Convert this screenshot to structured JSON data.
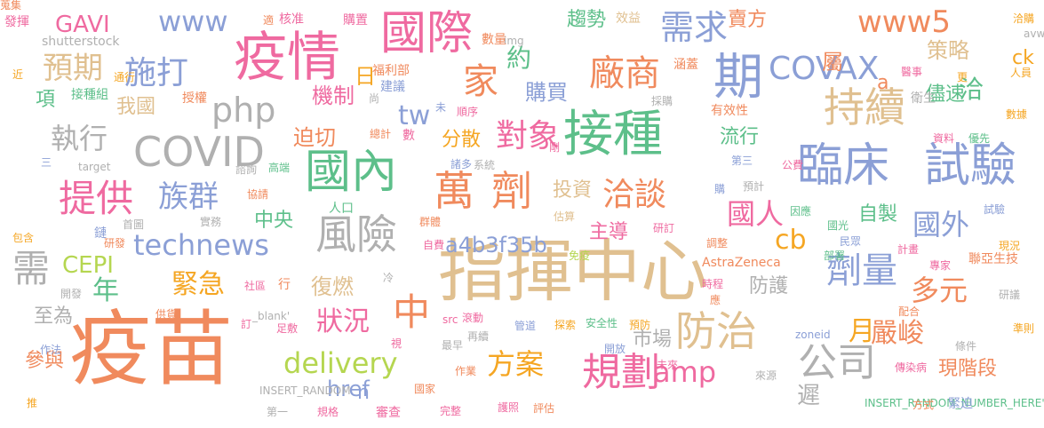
{
  "words": [
    {
      "t": "疫苗",
      "c": "#f08a5d"
    },
    {
      "t": "指揮中心",
      "c": "#e0c090"
    },
    {
      "t": "接種",
      "c": "#5dbf8a"
    },
    {
      "t": "疫情",
      "c": "#ef6aa0"
    },
    {
      "t": "國際",
      "c": "#ef6aa0"
    },
    {
      "t": "國內",
      "c": "#5dbf8a"
    },
    {
      "t": "萬",
      "c": "#f08a5d"
    },
    {
      "t": "劑",
      "c": "#f08a5d"
    },
    {
      "t": "臨床",
      "c": "#8b9fd6"
    },
    {
      "t": "試驗",
      "c": "#8b9fd6"
    },
    {
      "t": "COVID",
      "c": "#b0b0b0"
    },
    {
      "t": "風險",
      "c": "#b0b0b0"
    },
    {
      "t": "持續",
      "c": "#e0c090"
    },
    {
      "t": "期",
      "c": "#8b9fd6"
    },
    {
      "t": "廠商",
      "c": "#f08a5d"
    },
    {
      "t": "COVAX",
      "c": "#8b9fd6"
    },
    {
      "t": "需求",
      "c": "#8b9fd6"
    },
    {
      "t": "www5",
      "c": "#f08a5d"
    },
    {
      "t": "規劃",
      "c": "#ef6aa0"
    },
    {
      "t": "防治",
      "c": "#e0c090"
    },
    {
      "t": "公司",
      "c": "#b0b0b0"
    },
    {
      "t": "劑量",
      "c": "#8b9fd6"
    },
    {
      "t": "technews",
      "c": "#8b9fd6"
    },
    {
      "t": "delivery",
      "c": "#b5d650"
    },
    {
      "t": "提供",
      "c": "#ef6aa0"
    },
    {
      "t": "家",
      "c": "#f08a5d"
    },
    {
      "t": "施打",
      "c": "#8b9fd6"
    },
    {
      "t": "www",
      "c": "#8b9fd6"
    },
    {
      "t": "php",
      "c": "#b0b0b0"
    },
    {
      "t": "對象",
      "c": "#ef6aa0"
    },
    {
      "t": "洽談",
      "c": "#f08a5d"
    },
    {
      "t": "預期",
      "c": "#e0c090"
    },
    {
      "t": "族群",
      "c": "#8b9fd6"
    },
    {
      "t": "執行",
      "c": "#b0b0b0"
    },
    {
      "t": "狀況",
      "c": "#ef6aa0"
    },
    {
      "t": "緊急",
      "c": "#f5a623"
    },
    {
      "t": "方案",
      "c": "#f5a623"
    },
    {
      "t": "amp",
      "c": "#ef6aa0"
    },
    {
      "t": "嚴峻",
      "c": "#f08a5d"
    },
    {
      "t": "多元",
      "c": "#f08a5d"
    },
    {
      "t": "國人",
      "c": "#ef6aa0"
    },
    {
      "t": "國外",
      "c": "#8b9fd6"
    },
    {
      "t": "需",
      "c": "#b0b0b0"
    },
    {
      "t": "年",
      "c": "#5dbf8a"
    },
    {
      "t": "中",
      "c": "#f08a5d"
    },
    {
      "t": "月",
      "c": "#f5a623"
    },
    {
      "t": "cb",
      "c": "#f5a623"
    },
    {
      "t": "tw",
      "c": "#8b9fd6"
    },
    {
      "t": "GAVI",
      "c": "#ef6aa0"
    },
    {
      "t": "CEPI",
      "c": "#b5d650"
    },
    {
      "t": "a4b3f35b",
      "c": "#8b9fd6"
    },
    {
      "t": "href",
      "c": "#8b9fd6"
    },
    {
      "t": "n",
      "c": "#8b9fd6"
    },
    {
      "t": "機制",
      "c": "#ef6aa0"
    },
    {
      "t": "迫切",
      "c": "#f08a5d"
    },
    {
      "t": "購買",
      "c": "#8b9fd6"
    },
    {
      "t": "分散",
      "c": "#f5a623"
    },
    {
      "t": "投資",
      "c": "#e0c090"
    },
    {
      "t": "主導",
      "c": "#ef6aa0"
    },
    {
      "t": "復燃",
      "c": "#e0c090"
    },
    {
      "t": "防護",
      "c": "#b0b0b0"
    },
    {
      "t": "市場",
      "c": "#b0b0b0"
    },
    {
      "t": "現階段",
      "c": "#f08a5d"
    },
    {
      "t": "策略",
      "c": "#e0c090"
    },
    {
      "t": "儘速",
      "c": "#5dbf8a"
    },
    {
      "t": "自製",
      "c": "#5dbf8a"
    },
    {
      "t": "流行",
      "c": "#5dbf8a"
    },
    {
      "t": "趨勢",
      "c": "#5dbf8a"
    },
    {
      "t": "賣方",
      "c": "#f08a5d"
    },
    {
      "t": "屬",
      "c": "#f08a5d"
    },
    {
      "t": "洽",
      "c": "#5dbf8a"
    },
    {
      "t": "ck",
      "c": "#f5a623"
    },
    {
      "t": "a",
      "c": "#f08a5d"
    },
    {
      "t": "約",
      "c": "#5dbf8a"
    },
    {
      "t": "日",
      "c": "#f5a623"
    },
    {
      "t": "中央",
      "c": "#5dbf8a"
    },
    {
      "t": "參與",
      "c": "#f08a5d"
    },
    {
      "t": "至為",
      "c": "#b0b0b0"
    },
    {
      "t": "項",
      "c": "#5dbf8a"
    },
    {
      "t": "我國",
      "c": "#e0c090"
    },
    {
      "t": "遲",
      "c": "#b0b0b0"
    },
    {
      "t": "發揮",
      "c": "#ef6aa0"
    },
    {
      "t": "shutterstock",
      "c": "#b0b0b0"
    },
    {
      "t": "適",
      "c": "#f08a5d"
    },
    {
      "t": "核准",
      "c": "#ef6aa0"
    },
    {
      "t": "購置",
      "c": "#ef6aa0"
    },
    {
      "t": "img",
      "c": "#b0b0b0"
    },
    {
      "t": "效益",
      "c": "#e0c090"
    },
    {
      "t": "洽購",
      "c": "#f5a623"
    },
    {
      "t": "avw",
      "c": "#b0b0b0"
    },
    {
      "t": "數量",
      "c": "#f08a5d"
    },
    {
      "t": "涵蓋",
      "c": "#f08a5d"
    },
    {
      "t": "醫事",
      "c": "#ef6aa0"
    },
    {
      "t": "人員",
      "c": "#f5a623"
    },
    {
      "t": "更",
      "c": "#f5a623"
    },
    {
      "t": "福利部",
      "c": "#f08a5d"
    },
    {
      "t": "建議",
      "c": "#8b9fd6"
    },
    {
      "t": "尚",
      "c": "#b0b0b0"
    },
    {
      "t": "通行",
      "c": "#f5a623"
    },
    {
      "t": "接種組",
      "c": "#5dbf8a"
    },
    {
      "t": "授權",
      "c": "#f08a5d"
    },
    {
      "t": "近",
      "c": "#f5a623"
    },
    {
      "t": "採購",
      "c": "#b0b0b0"
    },
    {
      "t": "有效性",
      "c": "#f08a5d"
    },
    {
      "t": "衛生",
      "c": "#b0b0b0"
    },
    {
      "t": "數據",
      "c": "#f5a623"
    },
    {
      "t": "資料",
      "c": "#ef6aa0"
    },
    {
      "t": "優先",
      "c": "#5dbf8a"
    },
    {
      "t": "未",
      "c": "#8b9fd6"
    },
    {
      "t": "順序",
      "c": "#ef6aa0"
    },
    {
      "t": "總計",
      "c": "#f08a5d"
    },
    {
      "t": "數",
      "c": "#ef6aa0"
    },
    {
      "t": "諸多",
      "c": "#8b9fd6"
    },
    {
      "t": "系統",
      "c": "#b0b0b0"
    },
    {
      "t": "剛",
      "c": "#ef6aa0"
    },
    {
      "t": "第三",
      "c": "#8b9fd6"
    },
    {
      "t": "公費",
      "c": "#ef6aa0"
    },
    {
      "t": "三",
      "c": "#8b9fd6"
    },
    {
      "t": "target",
      "c": "#b0b0b0"
    },
    {
      "t": "諮詢",
      "c": "#b0b0b0"
    },
    {
      "t": "高端",
      "c": "#5dbf8a"
    },
    {
      "t": "協請",
      "c": "#f08a5d"
    },
    {
      "t": "人口",
      "c": "#5dbf8a"
    },
    {
      "t": "實務",
      "c": "#b0b0b0"
    },
    {
      "t": "估算",
      "c": "#e0c090"
    },
    {
      "t": "購",
      "c": "#8b9fd6"
    },
    {
      "t": "預計",
      "c": "#b0b0b0"
    },
    {
      "t": "因應",
      "c": "#5dbf8a"
    },
    {
      "t": "試驗",
      "c": "#8b9fd6"
    },
    {
      "t": "首圖",
      "c": "#b0b0b0"
    },
    {
      "t": "鏈",
      "c": "#8b9fd6"
    },
    {
      "t": "群體",
      "c": "#f08a5d"
    },
    {
      "t": "研訂",
      "c": "#ef6aa0"
    },
    {
      "t": "國光",
      "c": "#5dbf8a"
    },
    {
      "t": "包含",
      "c": "#f5a623"
    },
    {
      "t": "研發",
      "c": "#f08a5d"
    },
    {
      "t": "自費",
      "c": "#ef6aa0"
    },
    {
      "t": "調整",
      "c": "#f08a5d"
    },
    {
      "t": "民眾",
      "c": "#8b9fd6"
    },
    {
      "t": "計畫",
      "c": "#ef6aa0"
    },
    {
      "t": "現況",
      "c": "#f5a623"
    },
    {
      "t": "免疫",
      "c": "#b5d650"
    },
    {
      "t": "AstraZeneca",
      "c": "#f08a5d"
    },
    {
      "t": "部署",
      "c": "#5dbf8a"
    },
    {
      "t": "專家",
      "c": "#ef6aa0"
    },
    {
      "t": "聯亞生技",
      "c": "#f08a5d"
    },
    {
      "t": "社區",
      "c": "#ef6aa0"
    },
    {
      "t": "行",
      "c": "#f08a5d"
    },
    {
      "t": "開發",
      "c": "#b0b0b0"
    },
    {
      "t": "冷",
      "c": "#b0b0b0"
    },
    {
      "t": "時程",
      "c": "#ef6aa0"
    },
    {
      "t": "應",
      "c": "#f08a5d"
    },
    {
      "t": "配合",
      "c": "#f08a5d"
    },
    {
      "t": "研議",
      "c": "#b0b0b0"
    },
    {
      "t": "供貨",
      "c": "#f08a5d"
    },
    {
      "t": "訂",
      "c": "#ef6aa0"
    },
    {
      "t": "_blank'",
      "c": "#b0b0b0"
    },
    {
      "t": "足敷",
      "c": "#ef6aa0"
    },
    {
      "t": "src",
      "c": "#ef6aa0"
    },
    {
      "t": "滾動",
      "c": "#ef6aa0"
    },
    {
      "t": "管道",
      "c": "#8b9fd6"
    },
    {
      "t": "探索",
      "c": "#f5a623"
    },
    {
      "t": "安全性",
      "c": "#5dbf8a"
    },
    {
      "t": "預防",
      "c": "#f5a623"
    },
    {
      "t": "準則",
      "c": "#f5a623"
    },
    {
      "t": "作法",
      "c": "#8b9fd6"
    },
    {
      "t": "視",
      "c": "#ef6aa0"
    },
    {
      "t": "再續",
      "c": "#b0b0b0"
    },
    {
      "t": "zoneid",
      "c": "#8b9fd6"
    },
    {
      "t": "條件",
      "c": "#b0b0b0"
    },
    {
      "t": "最早",
      "c": "#b0b0b0"
    },
    {
      "t": "作業",
      "c": "#f08a5d"
    },
    {
      "t": "開放",
      "c": "#8b9fd6"
    },
    {
      "t": "未來",
      "c": "#ef6aa0"
    },
    {
      "t": "傳染病",
      "c": "#ef6aa0"
    },
    {
      "t": "來源",
      "c": "#b0b0b0"
    },
    {
      "t": "國家",
      "c": "#f08a5d"
    },
    {
      "t": "INSERT_RANDOM",
      "c": "#b0b0b0"
    },
    {
      "t": "推",
      "c": "#f5a623"
    },
    {
      "t": "第一",
      "c": "#b0b0b0"
    },
    {
      "t": "規格",
      "c": "#ef6aa0"
    },
    {
      "t": "審查",
      "c": "#ef6aa0"
    },
    {
      "t": "完整",
      "c": "#ef6aa0"
    },
    {
      "t": "護照",
      "c": "#ef6aa0"
    },
    {
      "t": "評估",
      "c": "#f08a5d"
    },
    {
      "t": "INSERT_RANDOM_NUMBER_HERE'",
      "c": "#5dbf8a"
    },
    {
      "t": "方式",
      "c": "#f08a5d"
    },
    {
      "t": "緊迫",
      "c": "#8b9fd6"
    },
    {
      "t": "蒐集",
      "c": "#f08a5d"
    }
  ]
}
